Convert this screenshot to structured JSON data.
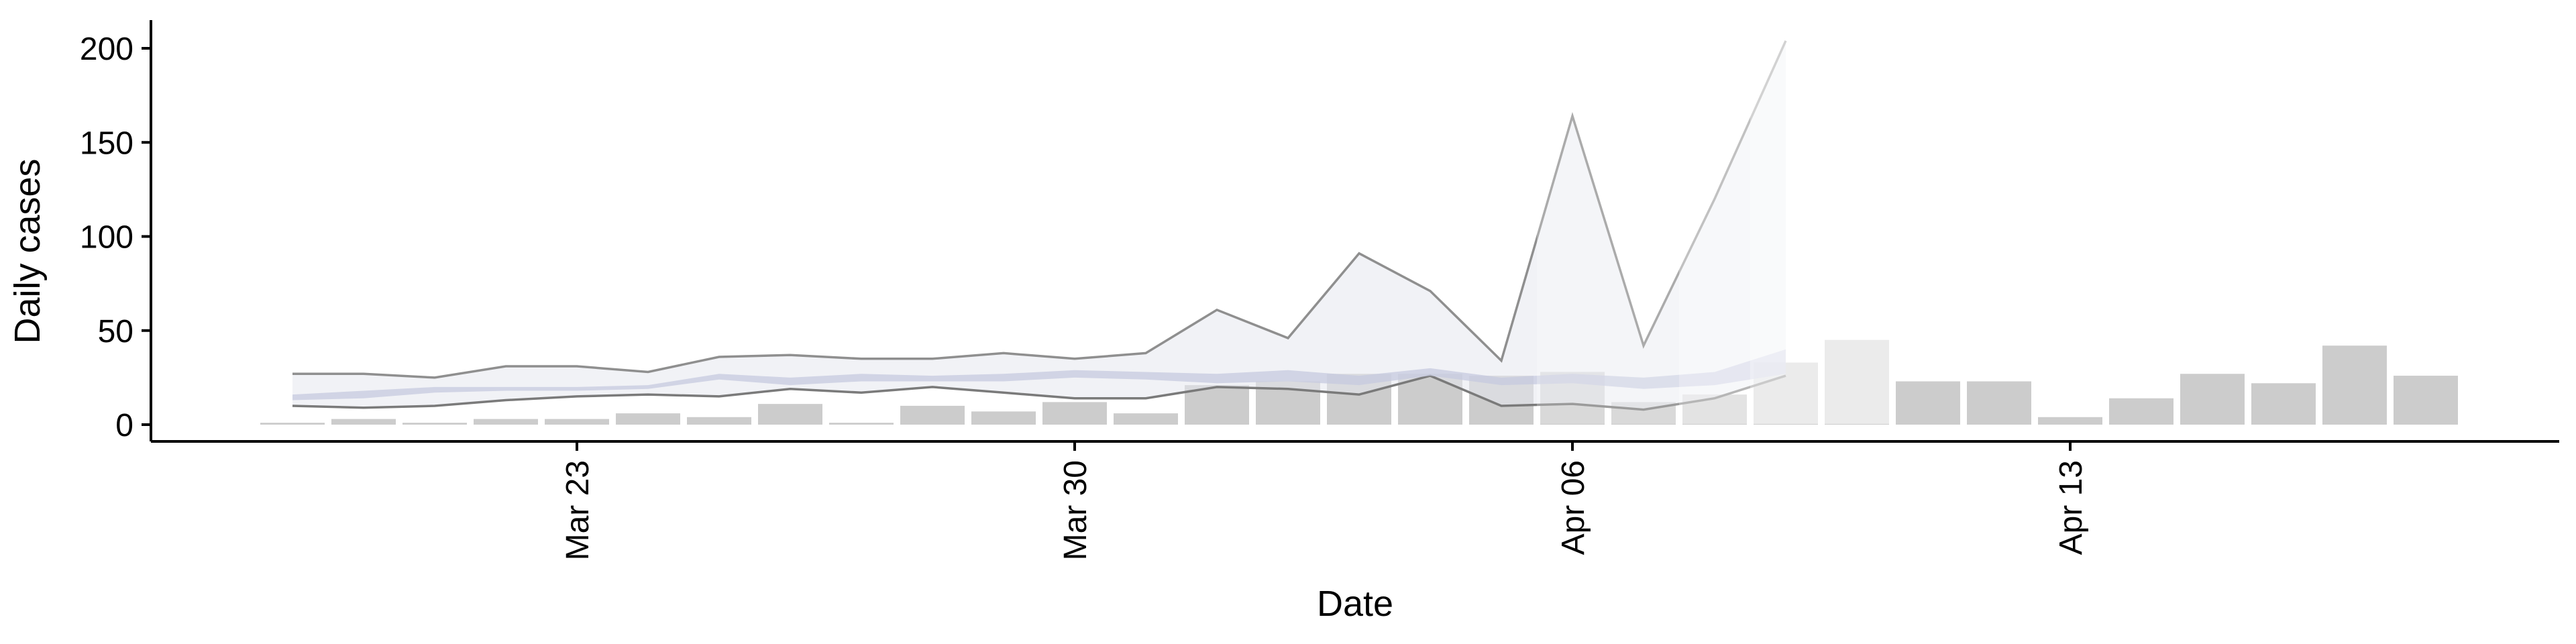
{
  "chart_data": {
    "type": "bar",
    "title": "",
    "xlabel": "Date",
    "ylabel": "Daily cases",
    "ylim": [
      -10,
      215
    ],
    "yticks": [
      "0",
      "50",
      "100",
      "150",
      "200"
    ],
    "yticks_values": [
      0,
      50,
      100,
      150,
      200
    ],
    "x_ticks": [
      {
        "date": "2020-03-23",
        "label": "Mar 23"
      },
      {
        "date": "2020-03-30",
        "label": "Mar 30"
      },
      {
        "date": "2020-04-06",
        "label": "Apr 06"
      },
      {
        "date": "2020-04-13",
        "label": "Apr 13"
      }
    ],
    "x_tick_label_rotation": "vertical",
    "grid": false,
    "series": [
      {
        "type": "bar",
        "dates": [
          "2020-03-19",
          "2020-03-20",
          "2020-03-21",
          "2020-03-22",
          "2020-03-23",
          "2020-03-24",
          "2020-03-25",
          "2020-03-26",
          "2020-03-27",
          "2020-03-28",
          "2020-03-29",
          "2020-03-30",
          "2020-03-31",
          "2020-04-01",
          "2020-04-02",
          "2020-04-03",
          "2020-04-04",
          "2020-04-05",
          "2020-04-06",
          "2020-04-07",
          "2020-04-08",
          "2020-04-09",
          "2020-04-10",
          "2020-04-11",
          "2020-04-12",
          "2020-04-13",
          "2020-04-14",
          "2020-04-15",
          "2020-04-16",
          "2020-04-17",
          "2020-04-18"
        ],
        "values": [
          1,
          3,
          1,
          3,
          3,
          6,
          4,
          11,
          1,
          10,
          7,
          12,
          6,
          21,
          23,
          27,
          27,
          26,
          28,
          12,
          16,
          33,
          45,
          23,
          23,
          4,
          14,
          27,
          22,
          42,
          26
        ],
        "color": "#cccccc"
      },
      {
        "type": "ribbon",
        "dates": [
          "2020-03-19",
          "2020-03-20",
          "2020-03-21",
          "2020-03-22",
          "2020-03-23",
          "2020-03-24",
          "2020-03-25",
          "2020-03-26",
          "2020-03-27",
          "2020-03-28",
          "2020-03-29",
          "2020-03-30",
          "2020-03-31",
          "2020-04-01",
          "2020-04-02",
          "2020-04-03",
          "2020-04-04",
          "2020-04-05",
          "2020-04-06",
          "2020-04-07",
          "2020-04-08",
          "2020-04-09"
        ],
        "lower": [
          10,
          9,
          10,
          13,
          15,
          16,
          15,
          19,
          17,
          20,
          17,
          14,
          14,
          20,
          19,
          16,
          26,
          10,
          11,
          8,
          14,
          26
        ],
        "upper": [
          27,
          27,
          25,
          31,
          31,
          28,
          36,
          37,
          35,
          35,
          38,
          35,
          38,
          61,
          46,
          91,
          71,
          34,
          164,
          42,
          120,
          204
        ],
        "color": "#e6e7ef"
      },
      {
        "type": "ribbon",
        "dates": [
          "2020-03-19",
          "2020-03-20",
          "2020-03-21",
          "2020-03-22",
          "2020-03-23",
          "2020-03-24",
          "2020-03-25",
          "2020-03-26",
          "2020-03-27",
          "2020-03-28",
          "2020-03-29",
          "2020-03-30",
          "2020-03-31",
          "2020-04-01",
          "2020-04-02",
          "2020-04-03",
          "2020-04-04",
          "2020-04-05",
          "2020-04-06",
          "2020-04-07",
          "2020-04-08",
          "2020-04-09"
        ],
        "lower": [
          13,
          14,
          17,
          18,
          18,
          19,
          24,
          21,
          23,
          23,
          23,
          25,
          24,
          22,
          23,
          21,
          26,
          21,
          22,
          19,
          21,
          27
        ],
        "upper": [
          16,
          18,
          20,
          20,
          20,
          21,
          27,
          25,
          27,
          26,
          27,
          29,
          28,
          27,
          29,
          26,
          30,
          25,
          27,
          25,
          28,
          40
        ],
        "color": "#c5cadf"
      }
    ]
  }
}
